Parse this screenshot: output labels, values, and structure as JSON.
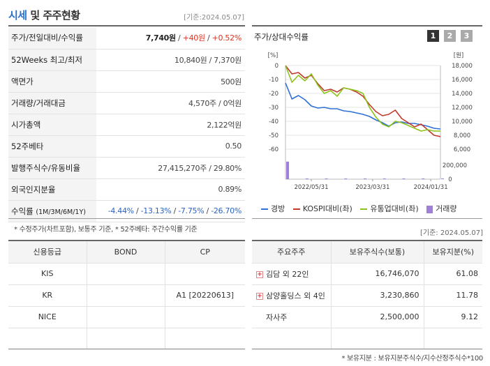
{
  "header": {
    "title_main": "시세",
    "title_rest": " 및 주주현황",
    "date": "[기준:2024.05.07]"
  },
  "info": {
    "rows": [
      {
        "label": "주가/전일대비/수익률",
        "price": "7,740원",
        "sep1": " / ",
        "change": "+40원",
        "sep2": " / ",
        "rate": "+0.52%"
      },
      {
        "label": "52Weeks 최고/최저",
        "value": "10,840원 / 7,370원"
      },
      {
        "label": "액면가",
        "value": "500원"
      },
      {
        "label": "거래량/거래대금",
        "value": "4,570주 / 0억원"
      },
      {
        "label": "시가총액",
        "value": "2,122억원"
      },
      {
        "label": "52주베타",
        "value": "0.50"
      },
      {
        "label": "발행주식수/유동비율",
        "value": "27,415,270주 / 29.80%"
      },
      {
        "label": "외국인지분율",
        "value": "0.89%"
      },
      {
        "label": "수익률",
        "label_sub": "(1M/3M/6M/1Y)",
        "r1": "-4.44%",
        "r2": "-13.13%",
        "r3": "-7.75%",
        "r4": "-26.70%",
        "sep": " / "
      }
    ],
    "footnote": "* 수정주가(차트포함), 보통주 기준, * 52주베타: 주간수익률 기준"
  },
  "chart_panel": {
    "title": "주가/상대수익률",
    "tabs": [
      "1",
      "2",
      "3"
    ],
    "selected_tab": "1",
    "legend": [
      {
        "name": "경방",
        "color": "#2f6fd6"
      },
      {
        "name": "KOSPI대비(좌)",
        "color": "#c0392b"
      },
      {
        "name": "유통업대비(좌)",
        "color": "#8cc21c"
      },
      {
        "name": "거래량",
        "color": "#a07fd8"
      }
    ]
  },
  "chart_data": {
    "type": "line",
    "left_unit": "[%]",
    "right_unit": "[원]",
    "left_ticks": [
      "0",
      "-10",
      "-20",
      "-30",
      "-40",
      "-50",
      "-60"
    ],
    "right_ticks": [
      "18,000",
      "16,000",
      "14,000",
      "12,000",
      "10,000",
      "8,000",
      "6,000"
    ],
    "volume_ticks": [
      "200,000",
      "0"
    ],
    "x_ticks": [
      "2022/05/31",
      "2023/03/31",
      "2024/01/31"
    ],
    "ylim_left": [
      -60,
      0
    ],
    "ylim_right": [
      6000,
      18000
    ],
    "x_index_range": [
      0,
      24
    ],
    "series": [
      {
        "name": "경방",
        "axis": "right",
        "color": "#2f6fd6",
        "x": [
          0,
          1,
          2,
          3,
          4,
          5,
          6,
          7,
          8,
          9,
          10,
          11,
          12,
          13,
          14,
          15,
          16,
          17,
          18,
          19,
          20,
          21,
          22,
          23,
          24
        ],
        "values": [
          15500,
          13200,
          13700,
          13100,
          12200,
          11900,
          12000,
          11800,
          11800,
          11500,
          11400,
          11200,
          11000,
          10700,
          10200,
          9800,
          9300,
          9800,
          9900,
          9700,
          9700,
          9500,
          9300,
          9000,
          8900
        ]
      },
      {
        "name": "KOSPI대비(좌)",
        "axis": "left",
        "color": "#c0392b",
        "x": [
          0,
          1,
          2,
          3,
          4,
          5,
          6,
          7,
          8,
          9,
          10,
          11,
          12,
          13,
          14,
          15,
          16,
          17,
          18,
          19,
          20,
          21,
          22,
          23,
          24
        ],
        "values": [
          0,
          -6,
          -5,
          -9,
          -7,
          -13,
          -18,
          -17,
          -19,
          -16,
          -17,
          -19,
          -22,
          -28,
          -33,
          -36,
          -35,
          -32,
          -38,
          -41,
          -44,
          -42,
          -46,
          -50,
          -51
        ]
      },
      {
        "name": "유통업대비(좌)",
        "axis": "left",
        "color": "#8cc21c",
        "x": [
          0,
          1,
          2,
          3,
          4,
          5,
          6,
          7,
          8,
          9,
          10,
          11,
          12,
          13,
          14,
          15,
          16,
          17,
          18,
          19,
          20,
          21,
          22,
          23,
          24
        ],
        "values": [
          0,
          -12,
          -7,
          -11,
          -6,
          -14,
          -20,
          -18,
          -22,
          -16,
          -17,
          -18,
          -20,
          -30,
          -37,
          -42,
          -44,
          -40,
          -41,
          -43,
          -45,
          -47,
          -46,
          -47,
          -47
        ]
      },
      {
        "name": "거래량",
        "axis": "volume",
        "type": "bar",
        "color": "#a07fd8",
        "x": [
          0,
          3,
          6,
          9,
          12,
          15,
          18,
          21,
          24
        ],
        "values": [
          280000,
          5000,
          3000,
          4000,
          3000,
          3000,
          4000,
          3000,
          4000
        ]
      }
    ]
  },
  "date2": "[기준: 2024.05.07]",
  "credit": {
    "headers": [
      "신용등급",
      "BOND",
      "CP"
    ],
    "rows": [
      [
        "KIS",
        "",
        ""
      ],
      [
        "KR",
        "",
        "A1  [20220613]"
      ],
      [
        "NICE",
        "",
        ""
      ],
      [
        "",
        "",
        ""
      ]
    ]
  },
  "holders": {
    "headers": [
      "주요주주",
      "보유주식수(보통)",
      "보유지분(%)"
    ],
    "rows": [
      {
        "name": "김담 외 22인",
        "expand": true,
        "shares": "16,746,070",
        "pct": "61.08"
      },
      {
        "name": "삼양홀딩스 외 4인",
        "expand": true,
        "shares": "3,230,860",
        "pct": "11.78"
      },
      {
        "name": "자사주",
        "expand": false,
        "shares": "2,500,000",
        "pct": "9.12"
      },
      {
        "name": "",
        "expand": false,
        "shares": "",
        "pct": ""
      }
    ],
    "footnote": "* 보유지분 : 보유지분주식수/지수산정주식수*100"
  }
}
